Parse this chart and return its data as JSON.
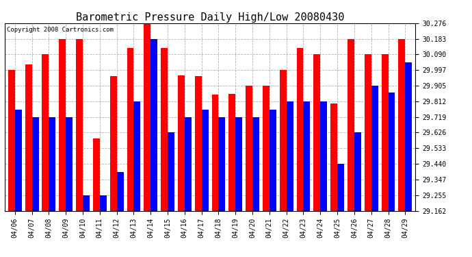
{
  "title": "Barometric Pressure Daily High/Low 20080430",
  "copyright": "Copyright 2008 Cartronics.com",
  "dates": [
    "04/06",
    "04/07",
    "04/08",
    "04/09",
    "04/10",
    "04/11",
    "04/12",
    "04/13",
    "04/14",
    "04/15",
    "04/16",
    "04/17",
    "04/18",
    "04/19",
    "04/20",
    "04/21",
    "04/22",
    "04/23",
    "04/24",
    "04/25",
    "04/26",
    "04/27",
    "04/28",
    "04/29"
  ],
  "highs": [
    29.997,
    30.03,
    30.09,
    30.183,
    30.183,
    29.59,
    29.96,
    30.13,
    30.276,
    30.13,
    29.965,
    29.96,
    29.85,
    29.857,
    29.905,
    29.905,
    29.997,
    30.13,
    30.09,
    29.8,
    30.183,
    30.09,
    30.09,
    30.183
  ],
  "lows": [
    29.762,
    29.719,
    29.719,
    29.719,
    29.255,
    29.255,
    29.39,
    29.812,
    30.183,
    29.626,
    29.719,
    29.762,
    29.719,
    29.719,
    29.719,
    29.762,
    29.812,
    29.812,
    29.812,
    29.44,
    29.626,
    29.905,
    29.862,
    30.043
  ],
  "ymin": 29.162,
  "ymax": 30.276,
  "yticks": [
    29.162,
    29.255,
    29.347,
    29.44,
    29.533,
    29.626,
    29.719,
    29.812,
    29.905,
    29.997,
    30.09,
    30.183,
    30.276
  ],
  "bar_width": 0.4,
  "high_color": "#ff0000",
  "low_color": "#0000ff",
  "bg_color": "#ffffff",
  "grid_color": "#aaaaaa",
  "title_fontsize": 11,
  "tick_fontsize": 7,
  "copyright_fontsize": 6.5
}
